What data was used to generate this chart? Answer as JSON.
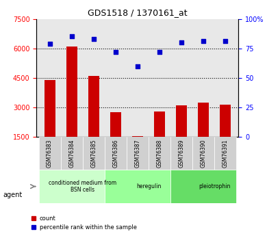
{
  "title": "GDS1518 / 1370161_at",
  "samples": [
    "GSM76383",
    "GSM76384",
    "GSM76385",
    "GSM76386",
    "GSM76387",
    "GSM76388",
    "GSM76389",
    "GSM76390",
    "GSM76391"
  ],
  "counts": [
    4400,
    6100,
    4600,
    2750,
    1550,
    2800,
    3100,
    3250,
    3150
  ],
  "percentiles": [
    79,
    85,
    83,
    72,
    60,
    72,
    80,
    81,
    81
  ],
  "groups": [
    {
      "label": "conditioned medium from\nBSN cells",
      "start": 0,
      "end": 3,
      "color": "#ccffcc"
    },
    {
      "label": "heregulin",
      "start": 3,
      "end": 6,
      "color": "#99ff99"
    },
    {
      "label": "pleiotrophin",
      "start": 6,
      "end": 9,
      "color": "#66dd66"
    }
  ],
  "ylim_left": [
    1500,
    7500
  ],
  "ylim_right": [
    0,
    100
  ],
  "yticks_left": [
    1500,
    3000,
    4500,
    6000,
    7500
  ],
  "yticks_right": [
    0,
    25,
    50,
    75,
    100
  ],
  "bar_color": "#cc0000",
  "dot_color": "#0000cc",
  "bar_width": 0.5,
  "background_color": "#ffffff",
  "plot_bg_color": "#e8e8e8",
  "grid_color": "#000000",
  "xlabel_area_height": 0.22
}
